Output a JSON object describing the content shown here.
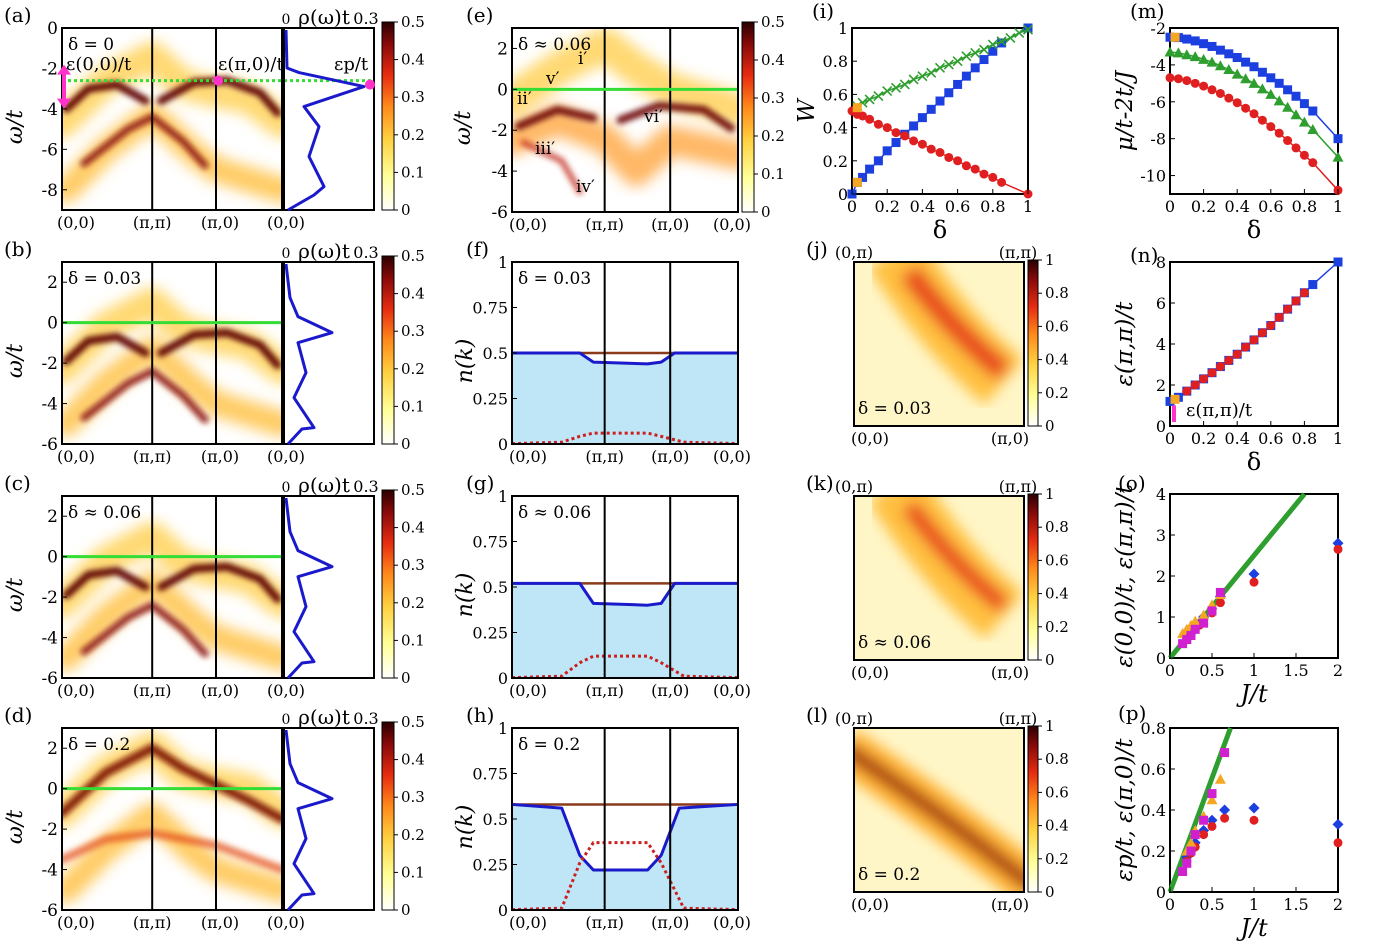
{
  "colors": {
    "heat_stops": [
      "#ffffff",
      "#ffff99",
      "#ffd040",
      "#ff8a1a",
      "#e62b10",
      "#8a0a0a",
      "#2a0000"
    ],
    "fermi_green": "#33dd33",
    "dos_blue": "#1a1acc",
    "filled_blue": "#bfe6f7",
    "nk_brown": "#8b3a1a",
    "dotted_red": "#cc2020",
    "series_blue": "#1c3fe0",
    "series_red": "#e02020",
    "series_green": "#2e9e2e",
    "series_orange": "#f5a623",
    "series_magenta": "#d020d0",
    "marker_pink": "#ff33cc"
  },
  "arpes_panels": [
    {
      "label": "(a)",
      "delta": "δ = 0",
      "fermi": -2.6,
      "ymin": -9,
      "ymax": 0,
      "yticks": [
        "0",
        "-2",
        "-4",
        "-6",
        "-8"
      ],
      "ann": [
        "ε(0,0)/t",
        "ε(π,0)/t",
        "εp/t"
      ]
    },
    {
      "label": "(b)",
      "delta": "δ = 0.03",
      "fermi": 0,
      "ymin": -6,
      "ymax": 3,
      "yticks": [
        "2",
        "0",
        "-2",
        "-4",
        "-6"
      ]
    },
    {
      "label": "(c)",
      "delta": "δ ≈ 0.06",
      "fermi": 0,
      "ymin": -6,
      "ymax": 3,
      "yticks": [
        "2",
        "0",
        "-2",
        "-4",
        "-6"
      ]
    },
    {
      "label": "(d)",
      "delta": "δ = 0.2",
      "fermi": 0,
      "ymin": -6,
      "ymax": 3,
      "yticks": [
        "2",
        "0",
        "-2",
        "-4",
        "-6"
      ]
    }
  ],
  "arpes_common": {
    "ylabel": "ω/t",
    "xticks": [
      "(0,0)",
      "(π,π)",
      "(π,0)",
      "(0,0)"
    ],
    "dos_title": "ρ(ω)t",
    "dos_tick0": "0",
    "dos_tick1": "0.3",
    "cbar_ticks": [
      "0.5",
      "0.4",
      "0.3",
      "0.2",
      "0.1",
      "0"
    ]
  },
  "panel_e": {
    "label": "(e)",
    "delta": "δ ≈ 0.06",
    "ylabel": "ω/t",
    "yticks": [
      "2",
      "0",
      "-2",
      "-4",
      "-6"
    ],
    "ymin": -6,
    "ymax": 3,
    "xticks": [
      "(0,0)",
      "(π,π)",
      "(π,0)",
      "(0,0)"
    ],
    "cbar_ticks": [
      "0.5",
      "0.4",
      "0.3",
      "0.2",
      "0.1",
      "0"
    ],
    "annotations": [
      "i′",
      "ii′",
      "iii′",
      "iv′",
      "v′",
      "vi′"
    ]
  },
  "nk_panels": [
    {
      "label": "(f)",
      "delta": "δ = 0.03",
      "level": 0.5,
      "dip": 0.44,
      "dot": 0.06
    },
    {
      "label": "(g)",
      "delta": "δ ≈ 0.06",
      "level": 0.52,
      "dip": 0.4,
      "dot": 0.12
    },
    {
      "label": "(h)",
      "delta": "δ = 0.2",
      "level": 0.58,
      "dip": 0.22,
      "dot": 0.37
    }
  ],
  "nk_common": {
    "ylabel": "n(k)",
    "yticks": [
      "1",
      "0.75",
      "0.5",
      "0.25",
      "0"
    ],
    "xticks": [
      "(0,0)",
      "(π,π)",
      "(π,0)",
      "(0,0)"
    ]
  },
  "map_panels": [
    {
      "label": "(j)",
      "delta": "δ = 0.03"
    },
    {
      "label": "(k)",
      "delta": "δ ≈ 0.06"
    },
    {
      "label": "(l)",
      "delta": "δ = 0.2"
    }
  ],
  "map_common": {
    "corner_tl": "(0,π)",
    "corner_tr": "(π,π)",
    "corner_bl": "(0,0)",
    "corner_br": "(π,0)",
    "cbar_ticks": [
      "1",
      "0.8",
      "0.6",
      "0.4",
      "0.2",
      "0"
    ]
  },
  "chart_data": [
    {
      "panel": "(i)",
      "type": "line",
      "ylabel": "W",
      "xlabel": "δ",
      "xlim": [
        0,
        1
      ],
      "ylim": [
        0,
        1
      ],
      "xticks": [
        "0",
        "0.2",
        "0.4",
        "0.6",
        "0.8",
        "1"
      ],
      "yticks": [
        "1",
        "0.8",
        "0.6",
        "0.4",
        "0.2",
        "0"
      ],
      "series": [
        {
          "color": "blue",
          "marker": "square",
          "x": [
            0,
            0.03,
            0.06,
            0.1,
            0.15,
            0.2,
            0.25,
            0.3,
            0.35,
            0.4,
            0.45,
            0.5,
            0.55,
            0.6,
            0.65,
            0.7,
            0.75,
            0.8,
            0.85,
            1.0
          ],
          "y": [
            0.0,
            0.07,
            0.1,
            0.15,
            0.2,
            0.26,
            0.31,
            0.36,
            0.41,
            0.46,
            0.51,
            0.56,
            0.61,
            0.66,
            0.71,
            0.76,
            0.81,
            0.86,
            0.91,
            1.0
          ]
        },
        {
          "color": "red",
          "marker": "circle",
          "x": [
            0,
            0.03,
            0.06,
            0.1,
            0.15,
            0.2,
            0.25,
            0.3,
            0.35,
            0.4,
            0.45,
            0.5,
            0.55,
            0.6,
            0.65,
            0.7,
            0.75,
            0.8,
            0.85,
            1.0
          ],
          "y": [
            0.5,
            0.48,
            0.47,
            0.45,
            0.42,
            0.4,
            0.37,
            0.35,
            0.32,
            0.3,
            0.27,
            0.25,
            0.22,
            0.2,
            0.17,
            0.15,
            0.12,
            0.1,
            0.07,
            0.0
          ]
        },
        {
          "color": "green",
          "marker": "cross",
          "x": [
            0.03,
            0.06,
            0.1,
            0.15,
            0.2,
            0.25,
            0.3,
            0.35,
            0.4,
            0.45,
            0.5,
            0.55,
            0.6,
            0.65,
            0.7,
            0.75,
            0.8,
            0.85,
            0.9,
            0.95,
            1.0
          ],
          "y": [
            0.53,
            0.55,
            0.57,
            0.59,
            0.62,
            0.64,
            0.66,
            0.69,
            0.71,
            0.73,
            0.76,
            0.78,
            0.8,
            0.83,
            0.85,
            0.87,
            0.9,
            0.92,
            0.94,
            0.97,
            0.99
          ]
        },
        {
          "color": "orange",
          "marker": "square",
          "x": [
            0.03,
            0.03
          ],
          "y": [
            0.52,
            0.07
          ]
        }
      ]
    },
    {
      "panel": "(m)",
      "type": "line",
      "ylabel": "μ/t-2t/J",
      "xlabel": "δ",
      "xlim": [
        0,
        1
      ],
      "ylim": [
        -11,
        -2
      ],
      "xticks": [
        "0",
        "0.2",
        "0.4",
        "0.6",
        "0.8",
        "1"
      ],
      "yticks": [
        "-2",
        "-4",
        "-6",
        "-8",
        "-10"
      ],
      "series": [
        {
          "color": "blue",
          "marker": "square",
          "x": [
            0,
            0.05,
            0.1,
            0.15,
            0.2,
            0.25,
            0.3,
            0.35,
            0.4,
            0.45,
            0.5,
            0.55,
            0.6,
            0.65,
            0.7,
            0.75,
            0.8,
            0.85,
            1.0
          ],
          "y": [
            -2.5,
            -2.52,
            -2.6,
            -2.7,
            -2.85,
            -3.0,
            -3.2,
            -3.4,
            -3.6,
            -3.85,
            -4.1,
            -4.4,
            -4.7,
            -5.0,
            -5.35,
            -5.7,
            -6.1,
            -6.5,
            -8.0
          ]
        },
        {
          "color": "green",
          "marker": "triangle",
          "x": [
            0,
            0.05,
            0.1,
            0.15,
            0.2,
            0.25,
            0.3,
            0.35,
            0.4,
            0.45,
            0.5,
            0.55,
            0.6,
            0.65,
            0.7,
            0.75,
            0.8,
            0.85,
            1.0
          ],
          "y": [
            -3.3,
            -3.35,
            -3.45,
            -3.55,
            -3.7,
            -3.85,
            -4.05,
            -4.25,
            -4.5,
            -4.75,
            -5.0,
            -5.3,
            -5.6,
            -5.95,
            -6.3,
            -6.7,
            -7.1,
            -7.5,
            -9.0
          ]
        },
        {
          "color": "red",
          "marker": "circle",
          "x": [
            0,
            0.05,
            0.1,
            0.15,
            0.2,
            0.25,
            0.3,
            0.35,
            0.4,
            0.45,
            0.5,
            0.55,
            0.6,
            0.65,
            0.7,
            0.75,
            0.8,
            0.85,
            1.0
          ],
          "y": [
            -4.7,
            -4.75,
            -4.85,
            -5.0,
            -5.15,
            -5.35,
            -5.55,
            -5.8,
            -6.05,
            -6.35,
            -6.65,
            -7.0,
            -7.35,
            -7.7,
            -8.1,
            -8.5,
            -8.9,
            -9.3,
            -10.8
          ]
        },
        {
          "color": "orange",
          "marker": "square",
          "x": [
            0.03
          ],
          "y": [
            -2.5
          ]
        }
      ]
    },
    {
      "panel": "(n)",
      "type": "line",
      "ylabel": "ε(π,π)/t",
      "xlabel": "δ",
      "xlim": [
        0,
        1
      ],
      "ylim": [
        0,
        8
      ],
      "xticks": [
        "0",
        "0.2",
        "0.4",
        "0.6",
        "0.8",
        "1"
      ],
      "yticks": [
        "8",
        "6",
        "4",
        "2",
        "0"
      ],
      "annotation": "ε(π,π)/t",
      "series": [
        {
          "color": "blue",
          "marker": "square",
          "x": [
            0,
            0.05,
            0.1,
            0.15,
            0.2,
            0.25,
            0.3,
            0.35,
            0.4,
            0.45,
            0.5,
            0.55,
            0.6,
            0.65,
            0.7,
            0.75,
            0.8,
            0.85,
            1.0
          ],
          "y": [
            1.2,
            1.4,
            1.7,
            2.0,
            2.3,
            2.6,
            2.9,
            3.2,
            3.5,
            3.85,
            4.2,
            4.55,
            4.9,
            5.3,
            5.7,
            6.1,
            6.5,
            6.9,
            8.0
          ]
        },
        {
          "color": "red",
          "marker": "circle",
          "x": [
            0.1,
            0.15,
            0.2,
            0.25,
            0.3,
            0.35,
            0.4,
            0.45,
            0.5,
            0.55,
            0.6,
            0.65,
            0.7,
            0.75,
            0.8
          ],
          "y": [
            1.7,
            2.0,
            2.3,
            2.6,
            2.9,
            3.2,
            3.5,
            3.85,
            4.2,
            4.55,
            4.9,
            5.3,
            5.7,
            6.1,
            6.5
          ]
        },
        {
          "color": "orange",
          "marker": "square",
          "x": [
            0.03
          ],
          "y": [
            1.3
          ]
        }
      ]
    },
    {
      "panel": "(o)",
      "type": "scatter",
      "ylabel": "ε(0,0)/t, ε(π,π)/t",
      "xlabel": "J/t",
      "xlim": [
        0,
        2
      ],
      "ylim": [
        0,
        4
      ],
      "xticks": [
        "0",
        "0.5",
        "1",
        "1.5",
        "2"
      ],
      "yticks": [
        "4",
        "3",
        "2",
        "1",
        "0"
      ],
      "line": {
        "x": [
          0,
          1.6
        ],
        "y": [
          0,
          4.0
        ]
      },
      "series": [
        {
          "color": "blue",
          "marker": "diamond",
          "x": [
            0.2,
            0.25,
            0.3,
            0.35,
            0.4,
            0.5,
            0.6,
            1.0,
            2.0
          ],
          "y": [
            0.5,
            0.6,
            0.75,
            0.85,
            1.0,
            1.2,
            1.5,
            2.05,
            2.8
          ]
        },
        {
          "color": "red",
          "marker": "circle",
          "x": [
            0.2,
            0.25,
            0.3,
            0.35,
            0.4,
            0.5,
            0.6,
            1.0,
            2.0
          ],
          "y": [
            0.45,
            0.55,
            0.7,
            0.8,
            0.9,
            1.1,
            1.35,
            1.85,
            2.65
          ]
        },
        {
          "color": "orange",
          "marker": "triangle",
          "x": [
            0.15,
            0.2,
            0.25,
            0.3,
            0.4,
            0.5,
            0.6
          ],
          "y": [
            0.6,
            0.7,
            0.8,
            0.9,
            1.05,
            1.3,
            1.55
          ]
        },
        {
          "color": "magenta",
          "marker": "square",
          "x": [
            0.15,
            0.2,
            0.25,
            0.3,
            0.4,
            0.5,
            0.6
          ],
          "y": [
            0.35,
            0.45,
            0.55,
            0.7,
            0.85,
            1.15,
            1.6
          ]
        }
      ]
    },
    {
      "panel": "(p)",
      "type": "scatter",
      "ylabel": "εp/t, ε(π,0)/t",
      "xlabel": "J/t",
      "xlim": [
        0,
        2
      ],
      "ylim": [
        0,
        0.8
      ],
      "xticks": [
        "0",
        "0.5",
        "1",
        "1.5",
        "2"
      ],
      "yticks": [
        "0.8",
        "0.6",
        "0.4",
        "0.2",
        "0"
      ],
      "line": {
        "x": [
          0,
          0.72
        ],
        "y": [
          0,
          0.8
        ]
      },
      "series": [
        {
          "color": "blue",
          "marker": "diamond",
          "x": [
            0.2,
            0.25,
            0.3,
            0.4,
            0.5,
            0.65,
            1.0,
            2.0
          ],
          "y": [
            0.17,
            0.2,
            0.24,
            0.3,
            0.35,
            0.4,
            0.41,
            0.33
          ]
        },
        {
          "color": "red",
          "marker": "circle",
          "x": [
            0.2,
            0.25,
            0.3,
            0.4,
            0.5,
            0.65,
            1.0,
            2.0
          ],
          "y": [
            0.15,
            0.19,
            0.22,
            0.28,
            0.32,
            0.36,
            0.35,
            0.24
          ]
        },
        {
          "color": "orange",
          "marker": "triangle",
          "x": [
            0.2,
            0.25,
            0.3,
            0.4,
            0.5,
            0.6
          ],
          "y": [
            0.2,
            0.24,
            0.3,
            0.37,
            0.45,
            0.55
          ]
        },
        {
          "color": "magenta",
          "marker": "square",
          "x": [
            0.15,
            0.2,
            0.25,
            0.3,
            0.4,
            0.5,
            0.65
          ],
          "y": [
            0.1,
            0.14,
            0.2,
            0.28,
            0.35,
            0.48,
            0.68
          ]
        }
      ]
    }
  ]
}
